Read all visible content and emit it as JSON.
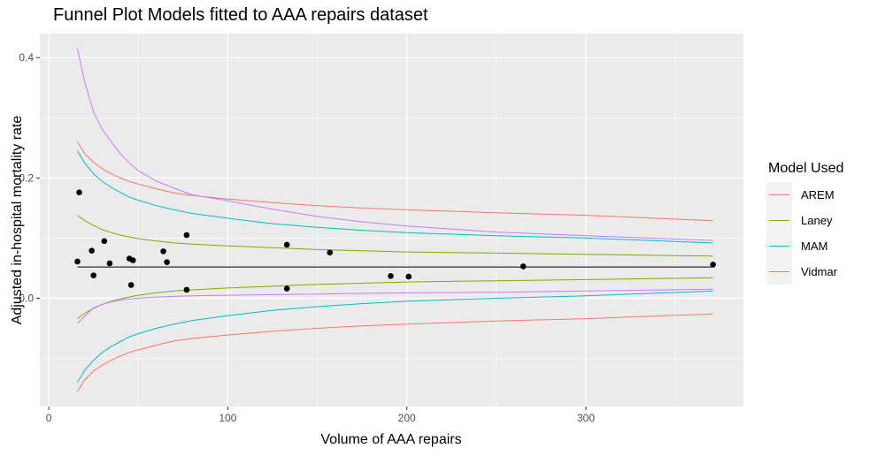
{
  "chart_data": {
    "type": "line",
    "title": "Funnel Plot Models fitted to AAA repairs dataset",
    "xlabel": "Volume of AAA repairs",
    "ylabel": "Adjusted in-hospital mortality rate",
    "xlim": [
      -5,
      388
    ],
    "ylim": [
      -0.18,
      0.44
    ],
    "x_ticks": [
      0,
      100,
      200,
      300
    ],
    "y_ticks": [
      0.0,
      0.2,
      0.4
    ],
    "x_tick_labels": [
      "0",
      "100",
      "200",
      "300"
    ],
    "y_tick_labels": [
      "0.0",
      "0.2",
      "0.4"
    ],
    "grid": true,
    "legend": {
      "title": "Model Used",
      "position": "right"
    },
    "target_line": {
      "y": 0.052,
      "x_range": [
        16,
        371
      ],
      "color": "#000000"
    },
    "points": {
      "x": [
        16,
        17,
        24,
        25,
        31,
        34,
        45,
        46,
        47,
        64,
        66,
        77,
        77,
        133,
        133,
        157,
        191,
        201,
        265,
        371
      ],
      "y": [
        0.061,
        0.176,
        0.079,
        0.038,
        0.095,
        0.058,
        0.066,
        0.022,
        0.063,
        0.078,
        0.06,
        0.105,
        0.014,
        0.089,
        0.016,
        0.076,
        0.037,
        0.036,
        0.053,
        0.056
      ]
    },
    "x": [
      16,
      20,
      25,
      30,
      35,
      40,
      45,
      50,
      60,
      70,
      80,
      100,
      125,
      150,
      175,
      200,
      250,
      300,
      371
    ],
    "series": [
      {
        "name": "AREM",
        "color": "#F8766D",
        "upper": [
          0.26,
          0.241,
          0.226,
          0.215,
          0.207,
          0.2,
          0.194,
          0.19,
          0.182,
          0.175,
          0.171,
          0.165,
          0.159,
          0.154,
          0.15,
          0.147,
          0.142,
          0.138,
          0.129
        ],
        "lower": [
          -0.155,
          -0.136,
          -0.121,
          -0.111,
          -0.103,
          -0.096,
          -0.09,
          -0.086,
          -0.078,
          -0.071,
          -0.067,
          -0.061,
          -0.055,
          -0.05,
          -0.046,
          -0.043,
          -0.038,
          -0.034,
          -0.026
        ]
      },
      {
        "name": "Laney",
        "color": "#7CAE00",
        "upper": [
          0.138,
          0.129,
          0.121,
          0.114,
          0.109,
          0.105,
          0.102,
          0.099,
          0.095,
          0.092,
          0.09,
          0.087,
          0.084,
          0.081,
          0.079,
          0.077,
          0.075,
          0.073,
          0.07
        ],
        "lower": [
          -0.034,
          -0.025,
          -0.017,
          -0.01,
          -0.005,
          -0.001,
          0.002,
          0.005,
          0.009,
          0.012,
          0.014,
          0.017,
          0.02,
          0.023,
          0.025,
          0.027,
          0.029,
          0.031,
          0.034
        ]
      },
      {
        "name": "MAM",
        "color": "#00BFC4",
        "upper": [
          0.245,
          0.225,
          0.207,
          0.194,
          0.184,
          0.176,
          0.168,
          0.163,
          0.154,
          0.147,
          0.141,
          0.133,
          0.124,
          0.118,
          0.113,
          0.109,
          0.104,
          0.1,
          0.092
        ],
        "lower": [
          -0.14,
          -0.12,
          -0.103,
          -0.09,
          -0.08,
          -0.072,
          -0.064,
          -0.059,
          -0.05,
          -0.043,
          -0.037,
          -0.029,
          -0.02,
          -0.014,
          -0.009,
          -0.005,
          0.0,
          0.004,
          0.012
        ]
      },
      {
        "name": "Vidmar",
        "color": "#C77CFF",
        "upper": [
          0.415,
          0.36,
          0.31,
          0.28,
          0.26,
          0.24,
          0.225,
          0.212,
          0.195,
          0.183,
          0.172,
          0.162,
          0.148,
          0.136,
          0.127,
          0.12,
          0.11,
          0.104,
          0.096
        ],
        "lower": [
          -0.042,
          -0.03,
          -0.016,
          -0.01,
          -0.006,
          -0.003,
          -0.001,
          0.0,
          0.002,
          0.003,
          0.004,
          0.005,
          0.006,
          0.007,
          0.008,
          0.009,
          0.01,
          0.012,
          0.015
        ]
      }
    ]
  }
}
